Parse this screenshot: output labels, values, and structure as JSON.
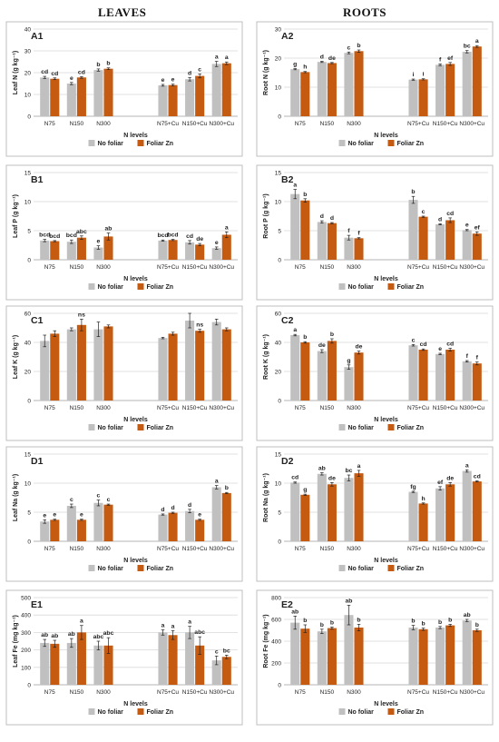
{
  "headers": {
    "left": "LEAVES",
    "right": "ROOTS"
  },
  "colors": {
    "no_foliar": "#c0c0c0",
    "foliar_zn": "#c55a11",
    "panel_border": "#bfbfbf",
    "grid": "#d9d9d9"
  },
  "chart_data": [
    {
      "id": "A1",
      "type": "bar",
      "ylabel": "Leaf N (g kg⁻¹)",
      "ylim": [
        0,
        40
      ],
      "yticks": [
        0,
        10,
        20,
        30,
        40
      ],
      "xlabel": "N levels",
      "categories": [
        "N75",
        "N150",
        "N300",
        "N75+Cu",
        "N150+Cu",
        "N300+Cu"
      ],
      "series": [
        {
          "name": "No foliar",
          "values": [
            17.8,
            15.0,
            21.2,
            14.2,
            17.0,
            24.0
          ],
          "errors": [
            0.5,
            0.5,
            0.5,
            0.4,
            0.8,
            1.2
          ],
          "labels": [
            "cd",
            "e",
            "b",
            "e",
            "d",
            "a"
          ]
        },
        {
          "name": "Foliar Zn",
          "values": [
            17.2,
            17.8,
            21.8,
            14.3,
            18.5,
            24.3
          ],
          "errors": [
            0.4,
            0.4,
            0.4,
            0.4,
            0.9,
            0.6
          ],
          "labels": [
            "cd",
            "cd",
            "b",
            "e",
            "c",
            "a"
          ]
        }
      ],
      "legend": "bottom"
    },
    {
      "id": "A2",
      "type": "bar",
      "ylabel": "Root N (g kg⁻¹)",
      "ylim": [
        0,
        30
      ],
      "yticks": [
        0,
        10,
        20,
        30
      ],
      "xlabel": "N levels",
      "categories": [
        "N75",
        "N150",
        "N300",
        "N75+Cu",
        "N150+Cu",
        "N300+Cu"
      ],
      "series": [
        {
          "name": "No foliar",
          "values": [
            16.2,
            18.7,
            21.8,
            12.6,
            17.7,
            22.2
          ],
          "errors": [
            0.2,
            0.2,
            0.3,
            0.2,
            0.3,
            0.4
          ],
          "labels": [
            "g",
            "d",
            "c",
            "i",
            "f",
            "bc"
          ]
        },
        {
          "name": "Foliar Zn",
          "values": [
            15.2,
            18.3,
            22.4,
            12.7,
            18.0,
            24.0
          ],
          "errors": [
            0.2,
            0.2,
            0.4,
            0.2,
            0.5,
            0.3
          ],
          "labels": [
            "h",
            "de",
            "b",
            "i",
            "ef",
            "a"
          ]
        }
      ],
      "legend": "bottom"
    },
    {
      "id": "B1",
      "type": "bar",
      "ylabel": "Leaf P (g kg⁻¹)",
      "ylim": [
        0,
        15
      ],
      "yticks": [
        0,
        5,
        10,
        15
      ],
      "xlabel": "N levels",
      "categories": [
        "N75",
        "N150",
        "N300",
        "N75+Cu",
        "N150+Cu",
        "N300+Cu"
      ],
      "series": [
        {
          "name": "No foliar",
          "values": [
            3.3,
            3.1,
            2.1,
            3.3,
            3.0,
            2.0
          ],
          "errors": [
            0.2,
            0.3,
            0.3,
            0.1,
            0.3,
            0.2
          ],
          "labels": [
            "bcd",
            "bcd",
            "e",
            "bcd",
            "cd",
            "e"
          ]
        },
        {
          "name": "Foliar Zn",
          "values": [
            3.2,
            3.8,
            4.0,
            3.4,
            2.6,
            4.3
          ],
          "errors": [
            0.1,
            0.3,
            0.6,
            0.1,
            0.2,
            0.5
          ],
          "labels": [
            "bcd",
            "abc",
            "ab",
            "bcd",
            "de",
            "a"
          ]
        }
      ],
      "legend": "bottom"
    },
    {
      "id": "B2",
      "type": "bar",
      "ylabel": "Root P (g kg⁻¹)",
      "ylim": [
        0,
        15
      ],
      "yticks": [
        0,
        5,
        10,
        15
      ],
      "xlabel": "N levels",
      "categories": [
        "N75",
        "N150",
        "N300",
        "N75+Cu",
        "N150+Cu",
        "N300+Cu"
      ],
      "series": [
        {
          "name": "No foliar",
          "values": [
            11.3,
            6.5,
            3.8,
            10.3,
            6.1,
            5.1
          ],
          "errors": [
            0.8,
            0.2,
            0.4,
            0.6,
            0.1,
            0.1
          ],
          "labels": [
            "a",
            "d",
            "f",
            "b",
            "d",
            "e"
          ]
        },
        {
          "name": "Foliar Zn",
          "values": [
            10.2,
            6.3,
            3.7,
            7.4,
            6.8,
            4.5
          ],
          "errors": [
            0.3,
            0.1,
            0.1,
            0.1,
            0.4,
            0.3
          ],
          "labels": [
            "b",
            "d",
            "f",
            "c",
            "cd",
            "ef"
          ]
        }
      ],
      "legend": "bottom"
    },
    {
      "id": "C1",
      "type": "bar",
      "ylabel": "Leaf K (g kg⁻¹)",
      "ylim": [
        0,
        60
      ],
      "yticks": [
        0,
        20,
        40,
        60
      ],
      "xlabel": "N levels",
      "categories": [
        "N75",
        "N150",
        "N300",
        "N75+Cu",
        "N150+Cu",
        "N300+Cu"
      ],
      "series": [
        {
          "name": "No foliar",
          "values": [
            41.0,
            49.0,
            49.0,
            43.0,
            55.0,
            54.0
          ],
          "errors": [
            4.0,
            1.0,
            5.0,
            0.5,
            5.0,
            2.0
          ],
          "labels": [
            "",
            "",
            "",
            "",
            "",
            ""
          ]
        },
        {
          "name": "Foliar Zn",
          "values": [
            46.0,
            52.0,
            51.0,
            46.0,
            48.0,
            49.0
          ],
          "errors": [
            2.0,
            4.0,
            1.0,
            1.0,
            1.0,
            1.0
          ],
          "labels": [
            "",
            "ns",
            "",
            "",
            "ns",
            ""
          ]
        }
      ],
      "legend": "bottom"
    },
    {
      "id": "C2",
      "type": "bar",
      "ylabel": "Root K (g kg⁻¹)",
      "ylim": [
        0,
        60
      ],
      "yticks": [
        0,
        20,
        40,
        60
      ],
      "xlabel": "N levels",
      "categories": [
        "N75",
        "N150",
        "N300",
        "N75+Cu",
        "N150+Cu",
        "N300+Cu"
      ],
      "series": [
        {
          "name": "No foliar",
          "values": [
            45.0,
            34.0,
            23.0,
            38.0,
            32.0,
            27.0
          ],
          "errors": [
            0.5,
            1.0,
            1.5,
            0.5,
            0.5,
            0.5
          ],
          "labels": [
            "a",
            "de",
            "g",
            "c",
            "e",
            "f"
          ]
        },
        {
          "name": "Foliar Zn",
          "values": [
            40.0,
            41.0,
            33.0,
            35.0,
            35.0,
            25.5
          ],
          "errors": [
            0.5,
            1.5,
            1.0,
            0.5,
            1.0,
            1.0
          ],
          "labels": [
            "b",
            "b",
            "de",
            "cd",
            "cd",
            "f"
          ]
        }
      ],
      "legend": "bottom"
    },
    {
      "id": "D1",
      "type": "bar",
      "ylabel": "Leaf Na (g kg⁻¹)",
      "ylim": [
        0,
        15
      ],
      "yticks": [
        0,
        5,
        10,
        15
      ],
      "xlabel": "N levels",
      "categories": [
        "N75",
        "N150",
        "N300",
        "N75+Cu",
        "N150+Cu",
        "N300+Cu"
      ],
      "series": [
        {
          "name": "No foliar",
          "values": [
            3.4,
            6.1,
            6.6,
            4.6,
            5.2,
            9.3
          ],
          "errors": [
            0.3,
            0.3,
            0.5,
            0.1,
            0.3,
            0.3
          ],
          "labels": [
            "e",
            "c",
            "c",
            "d",
            "d",
            "a"
          ]
        },
        {
          "name": "Foliar Zn",
          "values": [
            3.7,
            3.7,
            6.3,
            4.9,
            3.7,
            8.3
          ],
          "errors": [
            0.1,
            0.1,
            0.1,
            0.1,
            0.1,
            0.1
          ],
          "labels": [
            "e",
            "e",
            "c",
            "d",
            "e",
            "b"
          ]
        }
      ],
      "legend": "bottom"
    },
    {
      "id": "D2",
      "type": "bar",
      "ylabel": "Root Na (g kg⁻¹)",
      "ylim": [
        0,
        15
      ],
      "yticks": [
        0,
        5,
        10,
        15
      ],
      "xlabel": "N levels",
      "categories": [
        "N75",
        "N150",
        "N300",
        "N75+Cu",
        "N150+Cu",
        "N300+Cu"
      ],
      "series": [
        {
          "name": "No foliar",
          "values": [
            10.1,
            11.6,
            10.9,
            8.5,
            9.1,
            12.1
          ],
          "errors": [
            0.1,
            0.2,
            0.5,
            0.1,
            0.3,
            0.2
          ],
          "labels": [
            "cd",
            "ab",
            "bc",
            "fg",
            "ef",
            "a"
          ]
        },
        {
          "name": "Foliar Zn",
          "values": [
            8.0,
            9.8,
            11.7,
            6.5,
            9.8,
            10.3
          ],
          "errors": [
            0.1,
            0.3,
            0.5,
            0.1,
            0.3,
            0.1
          ],
          "labels": [
            "g",
            "de",
            "a",
            "h",
            "de",
            "cd"
          ]
        }
      ],
      "legend": "bottom"
    },
    {
      "id": "E1",
      "type": "bar",
      "ylabel": "Leaf Fe (mg kg⁻¹)",
      "ylim": [
        0,
        500
      ],
      "yticks": [
        0,
        100,
        200,
        300,
        400,
        500
      ],
      "xlabel": "N levels",
      "categories": [
        "N75",
        "N150",
        "N300",
        "N75+Cu",
        "N150+Cu",
        "N300+Cu"
      ],
      "series": [
        {
          "name": "No foliar",
          "values": [
            240,
            240,
            225,
            300,
            300,
            140
          ],
          "errors": [
            20,
            25,
            25,
            15,
            35,
            25
          ],
          "labels": [
            "ab",
            "ab",
            "abc",
            "a",
            "a",
            "c"
          ]
        },
        {
          "name": "Foliar Zn",
          "values": [
            235,
            300,
            225,
            285,
            225,
            160
          ],
          "errors": [
            20,
            40,
            45,
            25,
            50,
            10
          ],
          "labels": [
            "ab",
            "a",
            "abc",
            "a",
            "abc",
            "bc"
          ]
        }
      ],
      "legend": "bottom"
    },
    {
      "id": "E2",
      "type": "bar",
      "ylabel": "Root Fe (mg kg⁻¹)",
      "ylim": [
        0,
        800
      ],
      "yticks": [
        0,
        200,
        400,
        600,
        800
      ],
      "xlabel": "N levels",
      "categories": [
        "N75",
        "N150",
        "N300",
        "N75+Cu",
        "N150+Cu",
        "N300+Cu"
      ],
      "series": [
        {
          "name": "No foliar",
          "values": [
            570,
            490,
            640,
            525,
            525,
            590
          ],
          "errors": [
            60,
            20,
            90,
            20,
            10,
            10
          ],
          "labels": [
            "ab",
            "b",
            "ab",
            "b",
            "b",
            "ab"
          ]
        },
        {
          "name": "Foliar Zn",
          "values": [
            515,
            520,
            525,
            510,
            545,
            500
          ],
          "errors": [
            35,
            10,
            30,
            10,
            10,
            10
          ],
          "labels": [
            "b",
            "b",
            "b",
            "b",
            "b",
            "b"
          ]
        }
      ],
      "legend": "bottom"
    }
  ]
}
